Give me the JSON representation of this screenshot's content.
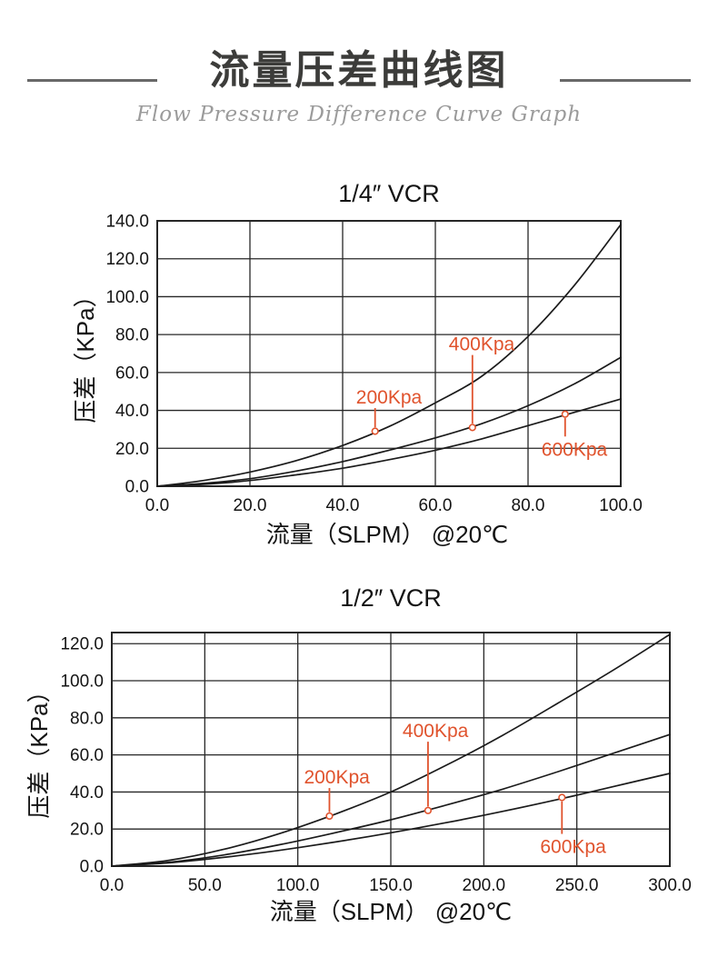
{
  "header": {
    "title": "流量压差曲线图",
    "subtitle": "Flow Pressure Difference Curve Graph"
  },
  "colors": {
    "title_text": "#3c3c3a",
    "subtitle_text": "#9b9b9b",
    "rule": "#696969",
    "curve": "#1b1b1b",
    "grid": "#262626",
    "axis_text": "#141414",
    "annotation": "#e0532d"
  },
  "chart_data": [
    {
      "type": "line",
      "title": "1/4″ VCR",
      "xlabel": "流量（SLPM） @20℃",
      "ylabel": "压差（KPa）",
      "xlim": [
        0,
        100
      ],
      "ylim": [
        0,
        140
      ],
      "grid": true,
      "legend": "none",
      "xticks": [
        "0.0",
        "20.0",
        "40.0",
        "60.0",
        "80.0",
        "100.0"
      ],
      "xtick_values": [
        0,
        20,
        40,
        60,
        80,
        100
      ],
      "yticks": [
        "0.0",
        "20.0",
        "40.0",
        "60.0",
        "80.0",
        "100.0",
        "120.0",
        "140.0"
      ],
      "ytick_values": [
        0,
        20,
        40,
        60,
        80,
        100,
        120,
        140
      ],
      "x": [
        0,
        10,
        20,
        30,
        40,
        50,
        60,
        70,
        80,
        90,
        100
      ],
      "series": [
        {
          "name": "200Kpa",
          "values": [
            0,
            3,
            7.5,
            13.5,
            21.5,
            31.5,
            44,
            58,
            79,
            106,
            138
          ]
        },
        {
          "name": "400Kpa",
          "values": [
            0,
            1.5,
            4,
            8,
            13,
            19,
            25.5,
            33,
            42.5,
            54,
            68
          ]
        },
        {
          "name": "600Kpa",
          "values": [
            0,
            1,
            3,
            6,
            9.5,
            14,
            19,
            25,
            32,
            39,
            46
          ]
        }
      ],
      "annotations": [
        {
          "text": "200Kpa",
          "x": 47,
          "y": 29,
          "label_x": 50,
          "label_y": 47,
          "side": "above"
        },
        {
          "text": "400Kpa",
          "x": 68,
          "y": 31,
          "label_x": 70,
          "label_y": 75,
          "side": "above"
        },
        {
          "text": "600Kpa",
          "x": 88,
          "y": 38,
          "label_x": 90,
          "label_y": 20,
          "side": "below"
        }
      ]
    },
    {
      "type": "line",
      "title": "1/2″ VCR",
      "xlabel": "流量（SLPM） @20℃",
      "ylabel": "压差（KPa）",
      "xlim": [
        0,
        300
      ],
      "ylim": [
        0,
        126
      ],
      "grid": true,
      "legend": "none",
      "xticks": [
        "0.0",
        "50.0",
        "100.0",
        "150.0",
        "200.0",
        "250.0",
        "300.0"
      ],
      "xtick_values": [
        0,
        50,
        100,
        150,
        200,
        250,
        300
      ],
      "yticks": [
        "0.0",
        "20.0",
        "40.0",
        "60.0",
        "80.0",
        "100.0",
        "120.0"
      ],
      "ytick_values": [
        0,
        20,
        40,
        60,
        80,
        100,
        120
      ],
      "x": [
        0,
        30,
        60,
        90,
        120,
        150,
        180,
        210,
        240,
        270,
        300
      ],
      "series": [
        {
          "name": "200Kpa",
          "values": [
            0,
            3,
            9,
            17.5,
            28,
            40,
            54.5,
            70.5,
            88,
            106,
            125
          ]
        },
        {
          "name": "400Kpa",
          "values": [
            0,
            2,
            6,
            11.5,
            18,
            25,
            33,
            41.5,
            51,
            61,
            71
          ]
        },
        {
          "name": "600Kpa",
          "values": [
            0,
            1.7,
            4.7,
            8.5,
            13,
            18,
            23.5,
            29.5,
            36,
            43,
            50
          ]
        }
      ],
      "annotations": [
        {
          "text": "200Kpa",
          "x": 117,
          "y": 27,
          "label_x": 121,
          "label_y": 48,
          "side": "above"
        },
        {
          "text": "400Kpa",
          "x": 170,
          "y": 30,
          "label_x": 174,
          "label_y": 73,
          "side": "above"
        },
        {
          "text": "600Kpa",
          "x": 242,
          "y": 37,
          "label_x": 248,
          "label_y": 11,
          "side": "below"
        }
      ]
    }
  ]
}
